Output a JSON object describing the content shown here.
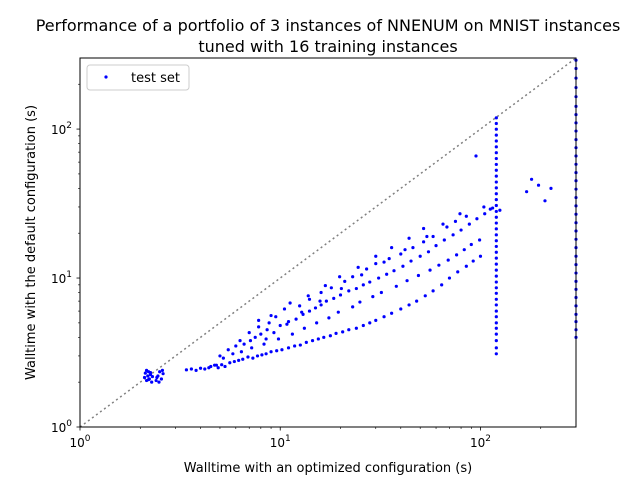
{
  "chart_data": {
    "type": "scatter",
    "title_line1": "Performance of a portfolio of 3 instances of NNENUM on MNIST instances",
    "title_line2": "tuned with 16 training instances",
    "xlabel": "Walltime with an optimized configuration (s)",
    "ylabel": "Walltime with the default configuration (s)",
    "xscale": "log",
    "yscale": "log",
    "xlim": [
      1,
      300
    ],
    "ylim": [
      1,
      300
    ],
    "x_ticks": [
      {
        "value": 1,
        "base": "10",
        "exp": "0"
      },
      {
        "value": 10,
        "base": "10",
        "exp": "1"
      },
      {
        "value": 100,
        "base": "10",
        "exp": "2"
      }
    ],
    "y_ticks": [
      {
        "value": 1,
        "base": "10",
        "exp": "0"
      },
      {
        "value": 10,
        "base": "10",
        "exp": "1"
      },
      {
        "value": 100,
        "base": "10",
        "exp": "2"
      }
    ],
    "diagonal": {
      "style": "dotted",
      "color": "#808080"
    },
    "legend": {
      "placement": "top-left",
      "label": "test set"
    },
    "series": [
      {
        "name": "test set",
        "color": "#0000ff",
        "points": [
          [
            2.1,
            2.15
          ],
          [
            2.12,
            2.3
          ],
          [
            2.15,
            2.05
          ],
          [
            2.18,
            2.2
          ],
          [
            2.2,
            2.35
          ],
          [
            2.22,
            2.1
          ],
          [
            2.25,
            2.25
          ],
          [
            2.28,
            2.0
          ],
          [
            2.3,
            2.18
          ],
          [
            2.15,
            2.4
          ],
          [
            2.2,
            2.08
          ],
          [
            2.25,
            2.32
          ],
          [
            2.4,
            2.05
          ],
          [
            2.45,
            2.2
          ],
          [
            2.5,
            2.35
          ],
          [
            2.55,
            2.1
          ],
          [
            2.6,
            2.28
          ],
          [
            2.48,
            2.0
          ],
          [
            2.42,
            2.15
          ],
          [
            2.58,
            2.4
          ],
          [
            3.4,
            2.42
          ],
          [
            3.6,
            2.45
          ],
          [
            3.8,
            2.4
          ],
          [
            4.0,
            2.48
          ],
          [
            4.2,
            2.45
          ],
          [
            4.4,
            2.5
          ],
          [
            4.5,
            2.55
          ],
          [
            4.7,
            2.6
          ],
          [
            4.9,
            2.5
          ],
          [
            5.1,
            2.62
          ],
          [
            5.3,
            2.55
          ],
          [
            5.6,
            2.7
          ],
          [
            5.9,
            2.75
          ],
          [
            6.2,
            2.8
          ],
          [
            6.5,
            2.85
          ],
          [
            6.9,
            2.95
          ],
          [
            7.3,
            2.9
          ],
          [
            7.7,
            3.0
          ],
          [
            8.1,
            3.05
          ],
          [
            8.5,
            3.1
          ],
          [
            9.0,
            3.2
          ],
          [
            9.6,
            3.25
          ],
          [
            10.2,
            3.3
          ],
          [
            11,
            3.4
          ],
          [
            11.8,
            3.5
          ],
          [
            12.6,
            3.55
          ],
          [
            13.5,
            3.7
          ],
          [
            14.5,
            3.8
          ],
          [
            15.5,
            3.9
          ],
          [
            16.5,
            4.0
          ],
          [
            17.8,
            4.1
          ],
          [
            19,
            4.25
          ],
          [
            20.5,
            4.35
          ],
          [
            22,
            4.5
          ],
          [
            24,
            4.6
          ],
          [
            26,
            4.8
          ],
          [
            28,
            5.0
          ],
          [
            30,
            5.2
          ],
          [
            33,
            5.5
          ],
          [
            36,
            5.8
          ],
          [
            40,
            6.2
          ],
          [
            44,
            6.6
          ],
          [
            48,
            7.0
          ],
          [
            53,
            7.6
          ],
          [
            58,
            8.2
          ],
          [
            64,
            9.0
          ],
          [
            70,
            10
          ],
          [
            77,
            11
          ],
          [
            85,
            12
          ],
          [
            92,
            13
          ],
          [
            100,
            14
          ],
          [
            5.0,
            3.0
          ],
          [
            5.5,
            3.3
          ],
          [
            6.0,
            3.5
          ],
          [
            6.6,
            3.6
          ],
          [
            7.1,
            3.8
          ],
          [
            7.5,
            4.0
          ],
          [
            8.0,
            4.2
          ],
          [
            8.6,
            4.5
          ],
          [
            9.3,
            4.3
          ],
          [
            10,
            4.8
          ],
          [
            11,
            5.1
          ],
          [
            12,
            5.3
          ],
          [
            13,
            5.7
          ],
          [
            14,
            6.0
          ],
          [
            15,
            6.3
          ],
          [
            16,
            6.6
          ],
          [
            17,
            7.0
          ],
          [
            18.5,
            7.3
          ],
          [
            20,
            7.7
          ],
          [
            22,
            8.2
          ],
          [
            24,
            8.5
          ],
          [
            26,
            9.0
          ],
          [
            28,
            9.4
          ],
          [
            31,
            10
          ],
          [
            34,
            10.6
          ],
          [
            37,
            11.2
          ],
          [
            41,
            12
          ],
          [
            45,
            13
          ],
          [
            50,
            14
          ],
          [
            55,
            15
          ],
          [
            60,
            16.5
          ],
          [
            66,
            18
          ],
          [
            73,
            19.5
          ],
          [
            80,
            21
          ],
          [
            88,
            23
          ],
          [
            96,
            25
          ],
          [
            105,
            27
          ],
          [
            112,
            29
          ],
          [
            6.3,
            3.8
          ],
          [
            7.0,
            4.3
          ],
          [
            7.8,
            4.7
          ],
          [
            8.8,
            5.0
          ],
          [
            9.5,
            5.5
          ],
          [
            10.5,
            6.2
          ],
          [
            12.5,
            6.5
          ],
          [
            14,
            7.2
          ],
          [
            16,
            8.0
          ],
          [
            18,
            8.6
          ],
          [
            21,
            9.5
          ],
          [
            23,
            10.2
          ],
          [
            27,
            11.5
          ],
          [
            30,
            12.5
          ],
          [
            35,
            13.5
          ],
          [
            40,
            14.5
          ],
          [
            46,
            16
          ],
          [
            52,
            17.5
          ],
          [
            58,
            19
          ],
          [
            68,
            22
          ],
          [
            75,
            24
          ],
          [
            85,
            26
          ],
          [
            4.8,
            2.6
          ],
          [
            5.2,
            2.9
          ],
          [
            5.8,
            3.1
          ],
          [
            6.4,
            3.2
          ],
          [
            7.2,
            3.4
          ],
          [
            8.3,
            3.6
          ],
          [
            9.8,
            3.9
          ],
          [
            11.5,
            4.2
          ],
          [
            13.2,
            4.6
          ],
          [
            15.2,
            5.0
          ],
          [
            17.5,
            5.4
          ],
          [
            19.5,
            5.9
          ],
          [
            23,
            6.4
          ],
          [
            25,
            6.9
          ],
          [
            29,
            7.5
          ],
          [
            32,
            8.0
          ],
          [
            38,
            8.8
          ],
          [
            43,
            9.6
          ],
          [
            49,
            10.4
          ],
          [
            56,
            11.3
          ],
          [
            62,
            12.2
          ],
          [
            69,
            13.2
          ],
          [
            76,
            14.3
          ],
          [
            83,
            15.5
          ],
          [
            90,
            16.8
          ],
          [
            99,
            18
          ],
          [
            8.5,
            3.9
          ],
          [
            10.8,
            4.9
          ],
          [
            12.8,
            5.9
          ],
          [
            15.8,
            7.0
          ],
          [
            20.2,
            8.5
          ],
          [
            25.5,
            10.5
          ],
          [
            33,
            12.8
          ],
          [
            42,
            15.5
          ],
          [
            54,
            19
          ],
          [
            65,
            23
          ],
          [
            79,
            27
          ],
          [
            7.8,
            5.2
          ],
          [
            9.0,
            5.6
          ],
          [
            11.2,
            6.8
          ],
          [
            13.8,
            7.6
          ],
          [
            16.8,
            8.9
          ],
          [
            19.8,
            10.2
          ],
          [
            24.5,
            11.8
          ],
          [
            30,
            14
          ],
          [
            36,
            16
          ],
          [
            44,
            18.5
          ],
          [
            52,
            21.5
          ],
          [
            95,
            66
          ],
          [
            104,
            30
          ],
          [
            115,
            29.5
          ],
          [
            125,
            28.5
          ],
          [
            170,
            38
          ],
          [
            180,
            46
          ],
          [
            195,
            42
          ],
          [
            210,
            33
          ],
          [
            225,
            40
          ],
          [
            120,
            3.1
          ],
          [
            120,
            3.4
          ],
          [
            120,
            3.8
          ],
          [
            120,
            4.2
          ],
          [
            120,
            4.6
          ],
          [
            120,
            5.0
          ],
          [
            120,
            5.5
          ],
          [
            120,
            6.0
          ],
          [
            120,
            6.6
          ],
          [
            120,
            7.2
          ],
          [
            120,
            7.9
          ],
          [
            120,
            8.6
          ],
          [
            120,
            9.4
          ],
          [
            120,
            10.3
          ],
          [
            120,
            11.3
          ],
          [
            120,
            12.4
          ],
          [
            120,
            13.6
          ],
          [
            120,
            14.9
          ],
          [
            120,
            16.3
          ],
          [
            120,
            17.8
          ],
          [
            120,
            19.5
          ],
          [
            120,
            21.4
          ],
          [
            120,
            23.4
          ],
          [
            120,
            25.6
          ],
          [
            120,
            28.0
          ],
          [
            120,
            30.7
          ],
          [
            120,
            33.6
          ],
          [
            120,
            36.8
          ],
          [
            120,
            40.3
          ],
          [
            120,
            44.1
          ],
          [
            120,
            48.3
          ],
          [
            120,
            52.9
          ],
          [
            120,
            57.9
          ],
          [
            120,
            63.4
          ],
          [
            120,
            69.4
          ],
          [
            120,
            76.0
          ],
          [
            120,
            83.2
          ],
          [
            120,
            91.1
          ],
          [
            120,
            99.8
          ],
          [
            120,
            109
          ],
          [
            120,
            119
          ],
          [
            300,
            4.0
          ],
          [
            300,
            4.5
          ],
          [
            300,
            5.1
          ],
          [
            300,
            5.7
          ],
          [
            300,
            6.5
          ],
          [
            300,
            7.4
          ],
          [
            300,
            8.4
          ],
          [
            300,
            9.5
          ],
          [
            300,
            10.8
          ],
          [
            300,
            12.3
          ],
          [
            300,
            14
          ],
          [
            300,
            16
          ],
          [
            300,
            18.2
          ],
          [
            300,
            20.7
          ],
          [
            300,
            23.5
          ],
          [
            300,
            26.8
          ],
          [
            300,
            30.5
          ],
          [
            300,
            34.7
          ],
          [
            300,
            39.5
          ],
          [
            300,
            45
          ],
          [
            300,
            51
          ],
          [
            300,
            58
          ],
          [
            300,
            66
          ],
          [
            300,
            75
          ],
          [
            300,
            85
          ],
          [
            300,
            97
          ],
          [
            300,
            110
          ],
          [
            300,
            125
          ],
          [
            300,
            142
          ],
          [
            300,
            165
          ],
          [
            300,
            190
          ],
          [
            300,
            220
          ],
          [
            300,
            255
          ],
          [
            300,
            290
          ]
        ]
      }
    ]
  }
}
